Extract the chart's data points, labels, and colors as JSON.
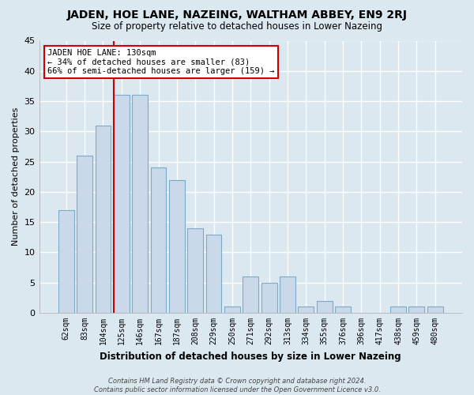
{
  "title": "JADEN, HOE LANE, NAZEING, WALTHAM ABBEY, EN9 2RJ",
  "subtitle": "Size of property relative to detached houses in Lower Nazeing",
  "xlabel": "Distribution of detached houses by size in Lower Nazeing",
  "ylabel": "Number of detached properties",
  "categories": [
    "62sqm",
    "83sqm",
    "104sqm",
    "125sqm",
    "146sqm",
    "167sqm",
    "187sqm",
    "208sqm",
    "229sqm",
    "250sqm",
    "271sqm",
    "292sqm",
    "313sqm",
    "334sqm",
    "355sqm",
    "376sqm",
    "396sqm",
    "417sqm",
    "438sqm",
    "459sqm",
    "480sqm"
  ],
  "values": [
    17,
    26,
    31,
    36,
    36,
    24,
    22,
    14,
    13,
    1,
    6,
    5,
    6,
    1,
    2,
    1,
    0,
    0,
    1,
    1,
    1
  ],
  "bar_color": "#c9d9ea",
  "bar_edge_color": "#7aaac8",
  "highlight_line_index": 3,
  "highlight_line_color": "#cc0000",
  "annotation_line1": "JADEN HOE LANE: 130sqm",
  "annotation_line2": "← 34% of detached houses are smaller (83)",
  "annotation_line3": "66% of semi-detached houses are larger (159) →",
  "annotation_box_color": "#ffffff",
  "annotation_box_edge": "#cc0000",
  "footer_line1": "Contains HM Land Registry data © Crown copyright and database right 2024.",
  "footer_line2": "Contains public sector information licensed under the Open Government Licence v3.0.",
  "background_color": "#dce8f0",
  "plot_bg_color": "#dce8f0",
  "ylim": [
    0,
    45
  ],
  "yticks": [
    0,
    5,
    10,
    15,
    20,
    25,
    30,
    35,
    40,
    45
  ],
  "grid_color": "#ffffff",
  "title_fontsize": 10,
  "subtitle_fontsize": 8.5
}
